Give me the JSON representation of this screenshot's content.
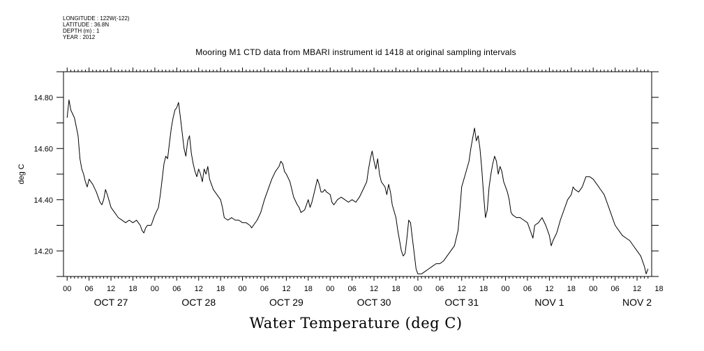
{
  "meta": {
    "longitude": "LONGITUDE : 122W(-122)",
    "latitude": "LATITUDE : 36.8N",
    "depth": "DEPTH (m) : 1",
    "year": "YEAR : 2012"
  },
  "chart_data": {
    "type": "line",
    "title": "Mooring M1 CTD data from MBARI instrument id 1418 at original sampling intervals",
    "xlabel": "Water Temperature (deg C)",
    "ylabel": "deg C",
    "x_unit": "hours since Oct 27 2012 00:00",
    "xlim": [
      -1,
      160
    ],
    "ylim": [
      14.1,
      14.9
    ],
    "yticks": [
      {
        "value": 14.2,
        "label": "14.20"
      },
      {
        "value": 14.4,
        "label": "14.40"
      },
      {
        "value": 14.6,
        "label": "14.60"
      },
      {
        "value": 14.8,
        "label": "14.80"
      }
    ],
    "hour_ticks": [
      "00",
      "06",
      "12",
      "18",
      "00",
      "06",
      "12",
      "18",
      "00",
      "06",
      "12",
      "18",
      "00",
      "06",
      "12",
      "18",
      "00",
      "06",
      "12",
      "18",
      "00",
      "06",
      "12",
      "18",
      "00",
      "06",
      "12",
      "18"
    ],
    "day_labels": [
      "OCT 27",
      "OCT 28",
      "OCT 29",
      "OCT 30",
      "OCT 31",
      "NOV  1",
      "NOV  2"
    ],
    "series": [
      {
        "name": "",
        "color": "#000000",
        "points": [
          [
            0,
            14.72
          ],
          [
            0.5,
            14.79
          ],
          [
            1,
            14.75
          ],
          [
            2,
            14.72
          ],
          [
            3,
            14.65
          ],
          [
            3.5,
            14.56
          ],
          [
            4,
            14.52
          ],
          [
            4.5,
            14.5
          ],
          [
            5,
            14.47
          ],
          [
            5.5,
            14.45
          ],
          [
            6,
            14.48
          ],
          [
            7,
            14.46
          ],
          [
            8,
            14.43
          ],
          [
            8.5,
            14.41
          ],
          [
            9,
            14.39
          ],
          [
            9.5,
            14.38
          ],
          [
            10,
            14.4
          ],
          [
            10.5,
            14.44
          ],
          [
            11,
            14.42
          ],
          [
            12,
            14.37
          ],
          [
            13,
            14.35
          ],
          [
            14,
            14.33
          ],
          [
            15,
            14.32
          ],
          [
            16,
            14.31
          ],
          [
            17,
            14.32
          ],
          [
            18,
            14.31
          ],
          [
            19,
            14.32
          ],
          [
            19.5,
            14.31
          ],
          [
            20,
            14.3
          ],
          [
            20.5,
            14.28
          ],
          [
            21,
            14.27
          ],
          [
            21.5,
            14.29
          ],
          [
            22,
            14.3
          ],
          [
            23,
            14.3
          ],
          [
            23.5,
            14.32
          ],
          [
            24,
            14.34
          ],
          [
            25,
            14.37
          ],
          [
            25.5,
            14.42
          ],
          [
            26,
            14.48
          ],
          [
            26.5,
            14.54
          ],
          [
            27,
            14.57
          ],
          [
            27.5,
            14.56
          ],
          [
            28,
            14.62
          ],
          [
            28.5,
            14.68
          ],
          [
            29,
            14.72
          ],
          [
            29.5,
            14.75
          ],
          [
            30,
            14.76
          ],
          [
            30.5,
            14.78
          ],
          [
            31,
            14.72
          ],
          [
            31.5,
            14.66
          ],
          [
            32,
            14.6
          ],
          [
            32.5,
            14.57
          ],
          [
            33,
            14.63
          ],
          [
            33.5,
            14.65
          ],
          [
            34,
            14.58
          ],
          [
            34.5,
            14.54
          ],
          [
            35,
            14.51
          ],
          [
            35.5,
            14.49
          ],
          [
            36,
            14.52
          ],
          [
            36.5,
            14.5
          ],
          [
            37,
            14.47
          ],
          [
            37.5,
            14.52
          ],
          [
            38,
            14.5
          ],
          [
            38.5,
            14.53
          ],
          [
            39,
            14.48
          ],
          [
            40,
            14.44
          ],
          [
            41,
            14.42
          ],
          [
            42,
            14.4
          ],
          [
            42.5,
            14.37
          ],
          [
            43,
            14.33
          ],
          [
            44,
            14.32
          ],
          [
            45,
            14.33
          ],
          [
            46,
            14.32
          ],
          [
            47,
            14.32
          ],
          [
            48,
            14.31
          ],
          [
            49,
            14.31
          ],
          [
            50,
            14.3
          ],
          [
            50.5,
            14.29
          ],
          [
            51,
            14.3
          ],
          [
            52,
            14.32
          ],
          [
            53,
            14.35
          ],
          [
            54,
            14.4
          ],
          [
            55,
            14.44
          ],
          [
            56,
            14.48
          ],
          [
            57,
            14.51
          ],
          [
            58,
            14.53
          ],
          [
            58.5,
            14.55
          ],
          [
            59,
            14.54
          ],
          [
            59.5,
            14.51
          ],
          [
            60,
            14.5
          ],
          [
            61,
            14.47
          ],
          [
            62,
            14.41
          ],
          [
            63,
            14.38
          ],
          [
            63.5,
            14.37
          ],
          [
            64,
            14.35
          ],
          [
            65,
            14.36
          ],
          [
            65.5,
            14.38
          ],
          [
            66,
            14.4
          ],
          [
            66.5,
            14.37
          ],
          [
            67,
            14.39
          ],
          [
            67.5,
            14.42
          ],
          [
            68,
            14.45
          ],
          [
            68.5,
            14.48
          ],
          [
            69,
            14.46
          ],
          [
            69.5,
            14.43
          ],
          [
            70,
            14.43
          ],
          [
            70.5,
            14.44
          ],
          [
            71,
            14.43
          ],
          [
            72,
            14.42
          ],
          [
            72.5,
            14.39
          ],
          [
            73,
            14.38
          ],
          [
            74,
            14.4
          ],
          [
            75,
            14.41
          ],
          [
            76,
            14.4
          ],
          [
            77,
            14.39
          ],
          [
            78,
            14.4
          ],
          [
            79,
            14.39
          ],
          [
            80,
            14.41
          ],
          [
            81,
            14.44
          ],
          [
            82,
            14.47
          ],
          [
            82.5,
            14.52
          ],
          [
            83,
            14.56
          ],
          [
            83.5,
            14.59
          ],
          [
            84,
            14.55
          ],
          [
            84.5,
            14.52
          ],
          [
            85,
            14.56
          ],
          [
            85.5,
            14.5
          ],
          [
            86,
            14.47
          ],
          [
            87,
            14.45
          ],
          [
            87.5,
            14.42
          ],
          [
            88,
            14.46
          ],
          [
            88.5,
            14.43
          ],
          [
            89,
            14.38
          ],
          [
            90,
            14.33
          ],
          [
            90.5,
            14.28
          ],
          [
            91,
            14.24
          ],
          [
            91.5,
            14.2
          ],
          [
            92,
            14.18
          ],
          [
            92.5,
            14.19
          ],
          [
            93,
            14.25
          ],
          [
            93.5,
            14.32
          ],
          [
            94,
            14.31
          ],
          [
            94.5,
            14.25
          ],
          [
            95,
            14.19
          ],
          [
            95.5,
            14.13
          ],
          [
            96,
            14.11
          ],
          [
            97,
            14.11
          ],
          [
            98,
            14.12
          ],
          [
            99,
            14.13
          ],
          [
            100,
            14.14
          ],
          [
            101,
            14.15
          ],
          [
            102,
            14.15
          ],
          [
            103,
            14.16
          ],
          [
            104,
            14.18
          ],
          [
            105,
            14.2
          ],
          [
            106,
            14.22
          ],
          [
            107,
            14.28
          ],
          [
            107.5,
            14.36
          ],
          [
            108,
            14.45
          ],
          [
            109,
            14.5
          ],
          [
            110,
            14.55
          ],
          [
            110.5,
            14.6
          ],
          [
            111,
            14.64
          ],
          [
            111.5,
            14.68
          ],
          [
            112,
            14.63
          ],
          [
            112.5,
            14.65
          ],
          [
            113,
            14.6
          ],
          [
            113.5,
            14.52
          ],
          [
            114,
            14.42
          ],
          [
            114.5,
            14.33
          ],
          [
            115,
            14.36
          ],
          [
            115.5,
            14.45
          ],
          [
            116,
            14.5
          ],
          [
            116.5,
            14.54
          ],
          [
            117,
            14.57
          ],
          [
            117.5,
            14.55
          ],
          [
            118,
            14.5
          ],
          [
            118.5,
            14.53
          ],
          [
            119,
            14.51
          ],
          [
            119.5,
            14.47
          ],
          [
            120,
            14.45
          ],
          [
            120.5,
            14.43
          ],
          [
            121,
            14.4
          ],
          [
            121.5,
            14.35
          ],
          [
            122,
            14.34
          ],
          [
            123,
            14.33
          ],
          [
            124,
            14.33
          ],
          [
            125,
            14.32
          ],
          [
            126,
            14.31
          ],
          [
            126.5,
            14.29
          ],
          [
            127,
            14.27
          ],
          [
            127.5,
            14.25
          ],
          [
            128,
            14.3
          ],
          [
            129,
            14.31
          ],
          [
            130,
            14.33
          ],
          [
            131,
            14.3
          ],
          [
            132,
            14.26
          ],
          [
            132.5,
            14.22
          ],
          [
            133,
            14.24
          ],
          [
            134,
            14.27
          ]
        ]
      },
      {
        "name": "",
        "color": "#000000",
        "points": [
          [
            134,
            14.27
          ],
          [
            135,
            14.32
          ],
          [
            136,
            14.36
          ],
          [
            137,
            14.4
          ],
          [
            138,
            14.42
          ],
          [
            138.5,
            14.45
          ],
          [
            139,
            14.44
          ],
          [
            140,
            14.43
          ],
          [
            141,
            14.45
          ],
          [
            142,
            14.49
          ],
          [
            143,
            14.49
          ],
          [
            144,
            14.48
          ],
          [
            145,
            14.46
          ],
          [
            146,
            14.44
          ],
          [
            147,
            14.42
          ],
          [
            148,
            14.38
          ],
          [
            149,
            14.34
          ],
          [
            150,
            14.3
          ],
          [
            151,
            14.28
          ],
          [
            152,
            14.26
          ],
          [
            153,
            14.25
          ],
          [
            154,
            14.24
          ],
          [
            155,
            14.22
          ],
          [
            156,
            14.2
          ],
          [
            157,
            14.18
          ],
          [
            158,
            14.14
          ],
          [
            158.5,
            14.11
          ],
          [
            159,
            14.13
          ]
        ]
      }
    ]
  }
}
